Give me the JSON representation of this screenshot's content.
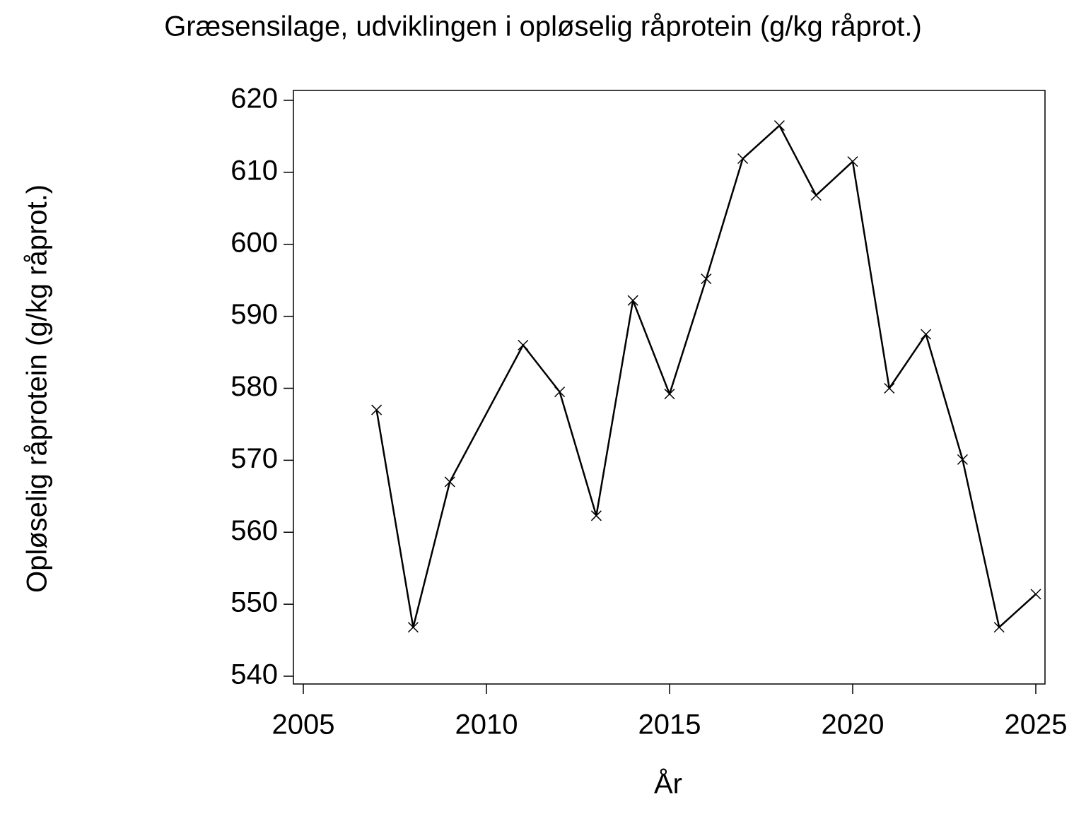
{
  "chart_data": {
    "type": "line",
    "title": "Græsensilage,  udviklingen  i  opløselig  råprotein  (g/kg  råprot.)",
    "x_label": "År",
    "y_label": "Opløselig  råprotein  (g/kg  råprot.)",
    "x": [
      2007,
      2008,
      2009,
      2011,
      2012,
      2013,
      2014,
      2015,
      2016,
      2017,
      2018,
      2019,
      2020,
      2021,
      2022,
      2023,
      2024,
      2025
    ],
    "series": [
      {
        "name": "Opløselig råprotein",
        "color": "#000000",
        "values": [
          577.0,
          546.8,
          567.0,
          586.0,
          579.5,
          562.3,
          592.2,
          579.2,
          595.2,
          611.9,
          616.5,
          606.8,
          611.5,
          580.0,
          587.5,
          570.1,
          546.8,
          551.4
        ]
      }
    ],
    "xlim": [
      2005,
      2025
    ],
    "xticks": [
      2005,
      2010,
      2015,
      2020,
      2025
    ],
    "ylim": [
      540,
      620
    ],
    "yticks": [
      540,
      550,
      560,
      570,
      580,
      590,
      600,
      610,
      620
    ],
    "marker": "x",
    "grid": false
  }
}
